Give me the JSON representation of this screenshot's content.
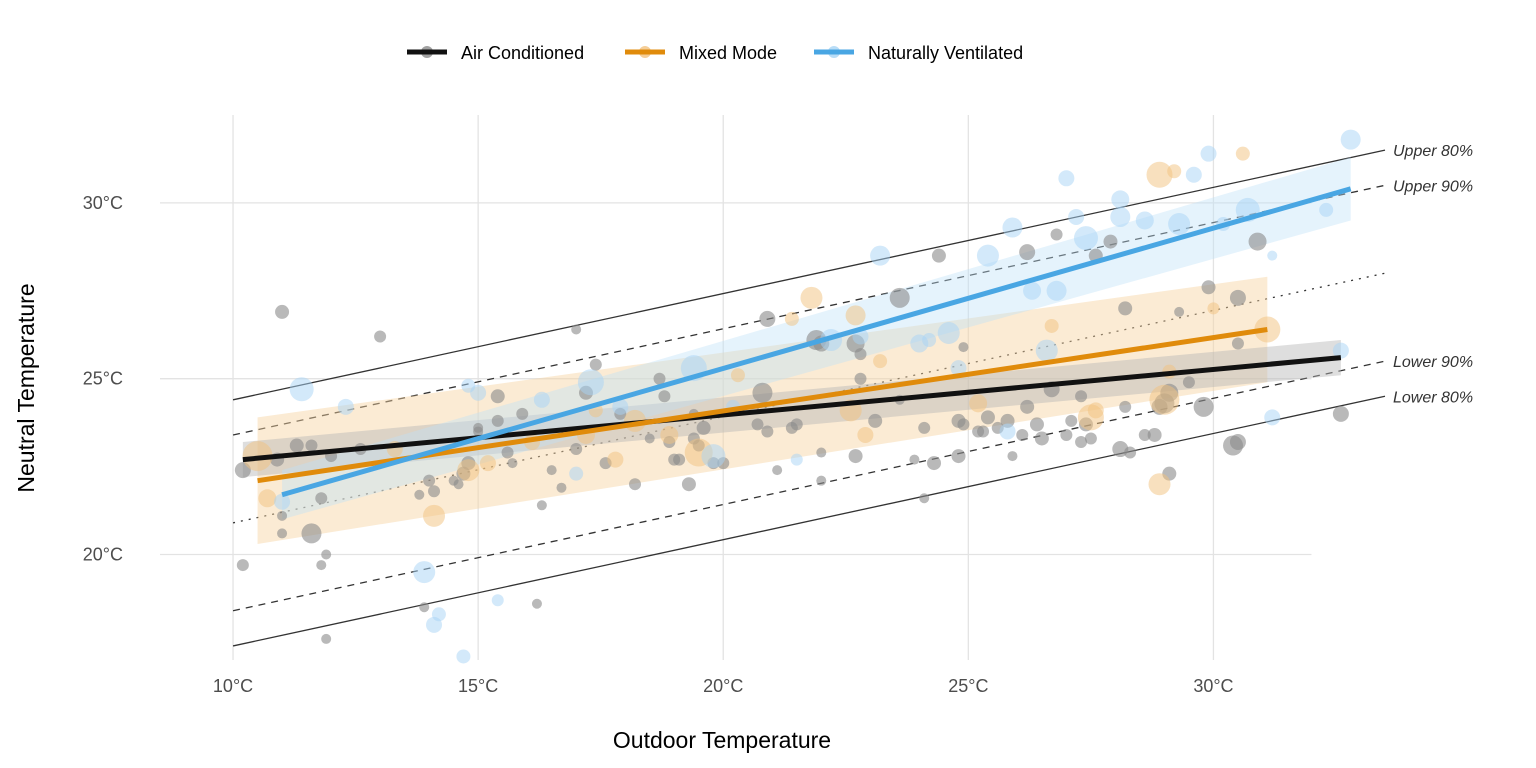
{
  "chart_data": {
    "type": "scatter",
    "xlabel": "Outdoor Temperature",
    "ylabel": "Neutral Temperature",
    "xlim": [
      8,
      33.5
    ],
    "ylim": [
      17,
      32.5
    ],
    "x_ticks": [
      10,
      15,
      20,
      25,
      30
    ],
    "x_tick_labels": [
      "10°C",
      "15°C",
      "20°C",
      "25°C",
      "30°C"
    ],
    "y_ticks": [
      20,
      25,
      30
    ],
    "y_tick_labels": [
      "20°C",
      "25°C",
      "30°C"
    ],
    "grid": true,
    "legend": {
      "position": "top",
      "entries": [
        "Air Conditioned",
        "Mixed Mode",
        "Naturally Ventilated"
      ]
    },
    "colors": {
      "Air Conditioned": "#111111",
      "Mixed Mode": "#e08b0b",
      "Naturally Ventilated": "#49a6e3"
    },
    "reference_lines": [
      {
        "label": "Upper 80%",
        "style": "solid",
        "x": [
          10,
          33.5
        ],
        "y": [
          24.4,
          31.5
        ]
      },
      {
        "label": "Upper 90%",
        "style": "dashed",
        "x": [
          10,
          33.5
        ],
        "y": [
          23.4,
          30.5
        ]
      },
      {
        "label": "",
        "style": "dotted",
        "x": [
          10,
          33.5
        ],
        "y": [
          20.9,
          28.0
        ]
      },
      {
        "label": "Lower 90%",
        "style": "dashed",
        "x": [
          10,
          33.5
        ],
        "y": [
          18.4,
          25.5
        ]
      },
      {
        "label": "Lower 80%",
        "style": "solid",
        "x": [
          10,
          33.5
        ],
        "y": [
          17.4,
          24.5
        ]
      }
    ],
    "series": [
      {
        "name": "Air Conditioned",
        "fit": {
          "x": [
            10.2,
            32.6
          ],
          "y": [
            22.7,
            25.6
          ]
        },
        "band": {
          "x": [
            10.2,
            32.6
          ],
          "lower": [
            22.2,
            25.1
          ],
          "upper": [
            23.2,
            26.1
          ]
        },
        "points": [
          [
            10.2,
            22.4,
            8
          ],
          [
            10.2,
            19.7,
            6
          ],
          [
            11.0,
            26.9,
            7
          ],
          [
            10.9,
            22.7,
            7
          ],
          [
            11.0,
            21.1,
            5
          ],
          [
            11.0,
            20.6,
            5
          ],
          [
            11.3,
            23.1,
            7
          ],
          [
            11.6,
            23.1,
            6
          ],
          [
            11.6,
            20.6,
            10
          ],
          [
            11.8,
            21.6,
            6
          ],
          [
            11.9,
            20.0,
            5
          ],
          [
            11.8,
            19.7,
            5
          ],
          [
            11.9,
            17.6,
            5
          ],
          [
            12.0,
            22.8,
            6
          ],
          [
            13.0,
            26.2,
            6
          ],
          [
            12.6,
            23.0,
            6
          ],
          [
            13.8,
            21.7,
            5
          ],
          [
            13.9,
            18.5,
            5
          ],
          [
            14.0,
            22.1,
            6
          ],
          [
            14.1,
            21.8,
            6
          ],
          [
            14.5,
            22.1,
            5
          ],
          [
            14.6,
            22.0,
            5
          ],
          [
            14.7,
            22.3,
            7
          ],
          [
            14.8,
            22.6,
            7
          ],
          [
            15.0,
            23.6,
            5
          ],
          [
            15.0,
            23.5,
            5
          ],
          [
            15.4,
            24.5,
            7
          ],
          [
            15.4,
            23.8,
            6
          ],
          [
            15.6,
            22.9,
            6
          ],
          [
            15.7,
            22.6,
            5
          ],
          [
            15.9,
            24.0,
            6
          ],
          [
            16.2,
            18.6,
            5
          ],
          [
            16.3,
            21.4,
            5
          ],
          [
            16.5,
            22.4,
            5
          ],
          [
            16.7,
            21.9,
            5
          ],
          [
            17.0,
            26.4,
            5
          ],
          [
            17.0,
            23.0,
            6
          ],
          [
            17.2,
            24.6,
            7
          ],
          [
            17.4,
            25.4,
            6
          ],
          [
            17.6,
            22.6,
            6
          ],
          [
            17.9,
            24.0,
            6
          ],
          [
            18.2,
            22.0,
            6
          ],
          [
            18.5,
            23.3,
            5
          ],
          [
            18.7,
            25.0,
            6
          ],
          [
            18.8,
            24.5,
            6
          ],
          [
            18.9,
            23.2,
            6
          ],
          [
            19.0,
            22.7,
            6
          ],
          [
            19.1,
            22.7,
            6
          ],
          [
            19.3,
            22.0,
            7
          ],
          [
            19.4,
            23.3,
            6
          ],
          [
            19.4,
            24.0,
            5
          ],
          [
            19.5,
            23.1,
            6
          ],
          [
            19.6,
            23.6,
            7
          ],
          [
            19.8,
            22.6,
            6
          ],
          [
            20.0,
            22.6,
            6
          ],
          [
            20.7,
            23.7,
            6
          ],
          [
            20.8,
            24.6,
            10
          ],
          [
            20.9,
            26.7,
            8
          ],
          [
            20.9,
            23.5,
            6
          ],
          [
            21.1,
            22.4,
            5
          ],
          [
            21.4,
            23.6,
            6
          ],
          [
            21.5,
            23.7,
            6
          ],
          [
            21.9,
            26.1,
            10
          ],
          [
            22.0,
            26.0,
            8
          ],
          [
            22.0,
            22.9,
            5
          ],
          [
            22.0,
            22.1,
            5
          ],
          [
            22.7,
            22.8,
            7
          ],
          [
            22.7,
            26.0,
            9
          ],
          [
            22.8,
            25.0,
            6
          ],
          [
            22.8,
            25.7,
            6
          ],
          [
            23.1,
            23.8,
            7
          ],
          [
            23.6,
            27.3,
            10
          ],
          [
            23.6,
            24.4,
            5
          ],
          [
            23.9,
            22.7,
            5
          ],
          [
            24.1,
            21.6,
            5
          ],
          [
            24.1,
            23.6,
            6
          ],
          [
            24.3,
            22.6,
            7
          ],
          [
            24.4,
            28.5,
            7
          ],
          [
            24.8,
            23.8,
            7
          ],
          [
            24.8,
            22.8,
            7
          ],
          [
            24.9,
            25.9,
            5
          ],
          [
            24.9,
            23.7,
            6
          ],
          [
            25.2,
            23.5,
            6
          ],
          [
            25.3,
            23.5,
            6
          ],
          [
            25.4,
            23.9,
            7
          ],
          [
            25.6,
            23.6,
            6
          ],
          [
            25.8,
            23.8,
            7
          ],
          [
            25.9,
            22.8,
            5
          ],
          [
            26.1,
            23.4,
            6
          ],
          [
            26.2,
            28.6,
            8
          ],
          [
            26.2,
            24.2,
            7
          ],
          [
            26.4,
            23.7,
            7
          ],
          [
            26.5,
            23.3,
            7
          ],
          [
            26.7,
            24.7,
            8
          ],
          [
            26.8,
            29.1,
            6
          ],
          [
            27.0,
            23.4,
            6
          ],
          [
            27.1,
            23.8,
            6
          ],
          [
            27.3,
            23.2,
            6
          ],
          [
            27.3,
            24.5,
            6
          ],
          [
            27.4,
            23.7,
            7
          ],
          [
            27.5,
            23.3,
            6
          ],
          [
            27.6,
            28.5,
            7
          ],
          [
            27.9,
            28.9,
            7
          ],
          [
            28.1,
            23.0,
            8
          ],
          [
            28.2,
            27.0,
            7
          ],
          [
            28.2,
            24.2,
            6
          ],
          [
            28.3,
            22.9,
            6
          ],
          [
            28.6,
            23.4,
            6
          ],
          [
            28.8,
            23.4,
            7
          ],
          [
            28.9,
            24.2,
            8
          ],
          [
            29.0,
            24.3,
            10
          ],
          [
            29.1,
            24.6,
            9
          ],
          [
            29.1,
            22.3,
            7
          ],
          [
            29.3,
            26.9,
            5
          ],
          [
            29.5,
            24.9,
            6
          ],
          [
            29.8,
            24.2,
            10
          ],
          [
            29.9,
            27.6,
            7
          ],
          [
            30.4,
            23.1,
            10
          ],
          [
            30.5,
            23.2,
            8
          ],
          [
            30.5,
            27.3,
            8
          ],
          [
            30.9,
            28.9,
            9
          ],
          [
            30.5,
            26.0,
            6
          ],
          [
            32.6,
            24.0,
            8
          ]
        ]
      },
      {
        "name": "Mixed Mode",
        "fit": {
          "x": [
            10.5,
            31.1
          ],
          "y": [
            22.1,
            26.4
          ]
        },
        "band": {
          "x": [
            10.5,
            31.1
          ],
          "lower": [
            20.3,
            24.9
          ],
          "upper": [
            23.9,
            27.9
          ]
        },
        "points": [
          [
            10.5,
            22.8,
            15
          ],
          [
            10.7,
            21.6,
            9
          ],
          [
            13.3,
            23.0,
            8
          ],
          [
            14.1,
            21.1,
            11
          ],
          [
            14.8,
            22.4,
            11
          ],
          [
            15.2,
            22.6,
            8
          ],
          [
            16.1,
            23.2,
            8
          ],
          [
            17.2,
            23.4,
            9
          ],
          [
            17.4,
            24.1,
            7
          ],
          [
            17.8,
            22.7,
            8
          ],
          [
            18.2,
            23.8,
            11
          ],
          [
            18.9,
            23.4,
            9
          ],
          [
            19.5,
            22.9,
            14
          ],
          [
            20.3,
            25.1,
            7
          ],
          [
            21.4,
            26.7,
            7
          ],
          [
            21.8,
            27.3,
            11
          ],
          [
            22.6,
            24.1,
            11
          ],
          [
            22.7,
            26.8,
            10
          ],
          [
            22.9,
            23.4,
            8
          ],
          [
            23.2,
            25.5,
            7
          ],
          [
            25.2,
            24.3,
            9
          ],
          [
            26.7,
            26.5,
            7
          ],
          [
            27.5,
            23.9,
            13
          ],
          [
            27.6,
            24.1,
            8
          ],
          [
            28.9,
            30.8,
            13
          ],
          [
            29.0,
            24.4,
            15
          ],
          [
            29.2,
            30.9,
            7
          ],
          [
            28.9,
            22.0,
            11
          ],
          [
            29.1,
            25.2,
            7
          ],
          [
            30.0,
            27.0,
            6
          ],
          [
            30.6,
            31.4,
            7
          ],
          [
            31.1,
            26.4,
            13
          ]
        ]
      },
      {
        "name": "Naturally Ventilated",
        "fit": {
          "x": [
            11.0,
            32.8
          ],
          "y": [
            21.7,
            30.4
          ]
        },
        "band": {
          "x": [
            11.0,
            32.8
          ],
          "lower": [
            21.0,
            29.5
          ],
          "upper": [
            22.4,
            31.3
          ]
        },
        "points": [
          [
            11.0,
            21.5,
            8
          ],
          [
            11.4,
            24.7,
            12
          ],
          [
            12.3,
            24.2,
            8
          ],
          [
            13.9,
            19.5,
            11
          ],
          [
            14.1,
            18.0,
            8
          ],
          [
            14.2,
            18.3,
            7
          ],
          [
            14.7,
            17.1,
            7
          ],
          [
            14.8,
            24.8,
            7
          ],
          [
            15.0,
            24.6,
            8
          ],
          [
            15.4,
            18.7,
            6
          ],
          [
            16.3,
            24.4,
            8
          ],
          [
            17.0,
            22.3,
            7
          ],
          [
            17.3,
            24.9,
            13
          ],
          [
            17.9,
            24.2,
            8
          ],
          [
            19.4,
            25.3,
            13
          ],
          [
            19.8,
            22.8,
            12
          ],
          [
            20.2,
            24.2,
            7
          ],
          [
            21.5,
            22.7,
            6
          ],
          [
            22.2,
            26.1,
            11
          ],
          [
            22.8,
            26.2,
            8
          ],
          [
            23.2,
            28.5,
            10
          ],
          [
            24.0,
            26.0,
            9
          ],
          [
            24.2,
            26.1,
            7
          ],
          [
            24.6,
            26.3,
            11
          ],
          [
            24.8,
            25.3,
            8
          ],
          [
            25.4,
            28.5,
            11
          ],
          [
            25.8,
            23.5,
            8
          ],
          [
            25.9,
            29.3,
            10
          ],
          [
            26.3,
            27.5,
            9
          ],
          [
            26.6,
            25.8,
            11
          ],
          [
            26.8,
            27.5,
            10
          ],
          [
            27.0,
            30.7,
            8
          ],
          [
            27.2,
            29.6,
            8
          ],
          [
            27.4,
            29.0,
            12
          ],
          [
            28.1,
            29.6,
            10
          ],
          [
            28.1,
            30.1,
            9
          ],
          [
            28.6,
            29.5,
            9
          ],
          [
            29.3,
            29.4,
            11
          ],
          [
            29.6,
            30.8,
            8
          ],
          [
            29.9,
            31.4,
            8
          ],
          [
            30.2,
            29.4,
            7
          ],
          [
            30.7,
            29.8,
            12
          ],
          [
            31.2,
            28.5,
            5
          ],
          [
            31.2,
            23.9,
            8
          ],
          [
            32.8,
            31.8,
            10
          ],
          [
            32.3,
            29.8,
            7
          ],
          [
            32.6,
            25.8,
            8
          ]
        ]
      }
    ]
  }
}
